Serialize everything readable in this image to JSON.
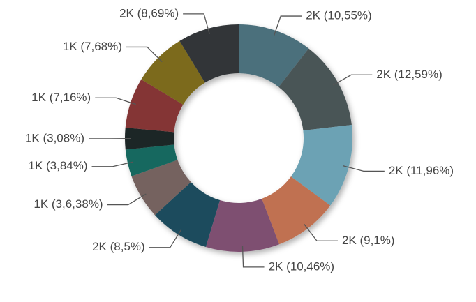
{
  "chart_data": {
    "type": "donut",
    "values": [
      10.55,
      12.59,
      11.96,
      9.1,
      10.46,
      8.5,
      6.38,
      3.84,
      3.08,
      7.16,
      7.68,
      8.69
    ],
    "value_labels": [
      "2K (10,55%)",
      "2K (12,59%)",
      "2K (11,96%)",
      "2K (9,1%)",
      "2K (10,46%)",
      "2K (8,5%)",
      "1K (3,6,38%)",
      "1K (3,84%)",
      "1K (3,08%)",
      "1K (7,16%)",
      "1K (7,68%)",
      "2K (8,69%)"
    ],
    "colors": [
      "#4b6f7b",
      "#4a5457",
      "#6ca2b4",
      "#c07151",
      "#7e4f71",
      "#1c4c5d",
      "#74625f",
      "#15685e",
      "#1f2627",
      "#843636",
      "#7b6b1f",
      "#303639"
    ]
  }
}
